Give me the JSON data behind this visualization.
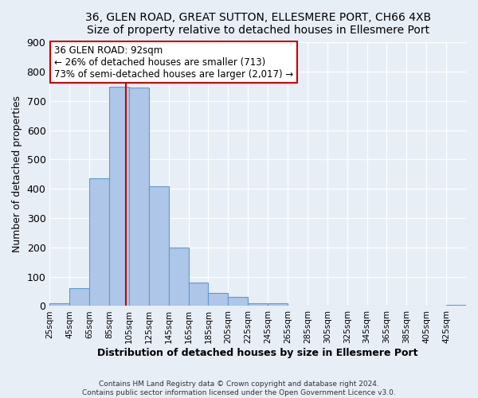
{
  "title": "36, GLEN ROAD, GREAT SUTTON, ELLESMERE PORT, CH66 4XB",
  "subtitle": "Size of property relative to detached houses in Ellesmere Port",
  "xlabel": "Distribution of detached houses by size in Ellesmere Port",
  "ylabel": "Number of detached properties",
  "bin_edges": [
    15,
    35,
    55,
    75,
    95,
    115,
    135,
    155,
    175,
    195,
    215,
    235,
    255,
    275,
    295,
    315,
    335,
    355,
    375,
    395,
    415,
    435
  ],
  "bin_labels": [
    "25sqm",
    "45sqm",
    "65sqm",
    "85sqm",
    "105sqm",
    "125sqm",
    "145sqm",
    "165sqm",
    "185sqm",
    "205sqm",
    "225sqm",
    "245sqm",
    "265sqm",
    "285sqm",
    "305sqm",
    "325sqm",
    "345sqm",
    "365sqm",
    "385sqm",
    "405sqm",
    "425sqm"
  ],
  "bar_heights": [
    10,
    60,
    435,
    750,
    745,
    410,
    200,
    80,
    45,
    30,
    10,
    10,
    0,
    0,
    0,
    0,
    0,
    0,
    0,
    0,
    5
  ],
  "bar_color": "#aec6e8",
  "bar_edge_color": "#5b9bd5",
  "vline_x": 92,
  "vline_color": "#cc0000",
  "ylim": [
    0,
    900
  ],
  "yticks": [
    0,
    100,
    200,
    300,
    400,
    500,
    600,
    700,
    800,
    900
  ],
  "annotation_title": "36 GLEN ROAD: 92sqm",
  "annotation_line1": "← 26% of detached houses are smaller (713)",
  "annotation_line2": "73% of semi-detached houses are larger (2,017) →",
  "annotation_box_color": "#ffffff",
  "annotation_border_color": "#cc0000",
  "footer1": "Contains HM Land Registry data © Crown copyright and database right 2024.",
  "footer2": "Contains public sector information licensed under the Open Government Licence v3.0.",
  "background_color": "#e8eef6",
  "plot_bg_color": "#e8eef6"
}
